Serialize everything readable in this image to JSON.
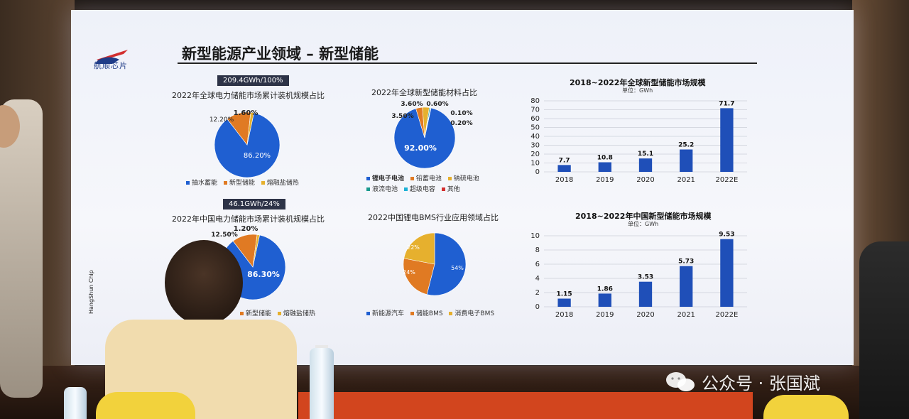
{
  "slide": {
    "title": "新型能源产业领域 – 新型储能",
    "logo_text": "航顺芯片",
    "side_brand": [
      "HangShun",
      "Chip"
    ]
  },
  "watermark": "公众号 · 张国斌",
  "colors": {
    "blue": "#1f5fd1",
    "orange": "#e07a23",
    "gold": "#e6b02e",
    "teal": "#1a9a8e",
    "cyan": "#1cb1d6",
    "red": "#d32f2f",
    "bar": "#1f4fb8"
  },
  "chart_data": [
    {
      "type": "pie",
      "tag": "209.4GWh/100%",
      "title": "2022年全球电力储能市场累计装机规模占比",
      "categories": [
        "抽水蓄能",
        "新型储能",
        "熔融盐储热"
      ],
      "values": [
        86.2,
        12.2,
        1.6
      ],
      "labels": [
        "86.20%",
        "12.20%",
        "1.60%"
      ],
      "legend": [
        "抽水蓄能",
        "新型储能",
        "熔融盐储热"
      ]
    },
    {
      "type": "pie",
      "title": "2022年全球新型储能材料占比",
      "categories": [
        "锂电子电池",
        "铅蓄电池",
        "钠硫电池",
        "液流电池",
        "超级电容",
        "其他"
      ],
      "values": [
        92.0,
        3.5,
        3.6,
        0.6,
        0.1,
        0.2
      ],
      "labels": [
        "92.00%",
        "3.50%",
        "3.60%",
        "0.60%",
        "0.10%",
        "0.20%"
      ],
      "legend": [
        "锂电子电池",
        "铅蓄电池",
        "钠硫电池",
        "液流电池",
        "超级电容",
        "其他"
      ]
    },
    {
      "type": "bar",
      "title": "2018~2022年全球新型储能市场规模",
      "unit": "单位：GWh",
      "categories": [
        "2018",
        "2019",
        "2020",
        "2021",
        "2022E"
      ],
      "values": [
        7.7,
        10.8,
        15.1,
        25.2,
        71.7
      ],
      "labels": [
        "7.7",
        "10.8",
        "15.1",
        "25.2",
        "71.7"
      ],
      "yticks": [
        "0",
        "10",
        "20",
        "30",
        "40",
        "50",
        "60",
        "70",
        "80"
      ],
      "ylim": [
        0,
        80
      ]
    },
    {
      "type": "pie",
      "tag": "46.1GWh/24%",
      "title": "2022年中国电力储能市场累计装机规模占比",
      "categories": [
        "抽水蓄能",
        "新型储能",
        "熔融盐储热"
      ],
      "values": [
        86.3,
        12.5,
        1.2
      ],
      "labels": [
        "86.30%",
        "12.50%",
        "1.20%"
      ],
      "legend": [
        "新型储能",
        "熔融盐储热"
      ]
    },
    {
      "type": "pie",
      "title": "2022中国锂电BMS行业应用领域占比",
      "categories": [
        "新能源汽车",
        "储能BMS",
        "消费电子BMS"
      ],
      "values": [
        54,
        24,
        22
      ],
      "labels": [
        "54%",
        "24%",
        "22%"
      ],
      "legend": [
        "新能源汽车",
        "储能BMS",
        "消费电子BMS"
      ]
    },
    {
      "type": "bar",
      "title": "2018~2022年中国新型储能市场规模",
      "unit": "单位：GWh",
      "categories": [
        "2018",
        "2019",
        "2020",
        "2021",
        "2022E"
      ],
      "values": [
        1.15,
        1.86,
        3.53,
        5.73,
        9.53
      ],
      "labels": [
        "1.15",
        "1.86",
        "3.53",
        "5.73",
        "9.53"
      ],
      "yticks": [
        "0",
        "2",
        "4",
        "6",
        "8",
        "10"
      ],
      "ylim": [
        0,
        10
      ]
    }
  ]
}
